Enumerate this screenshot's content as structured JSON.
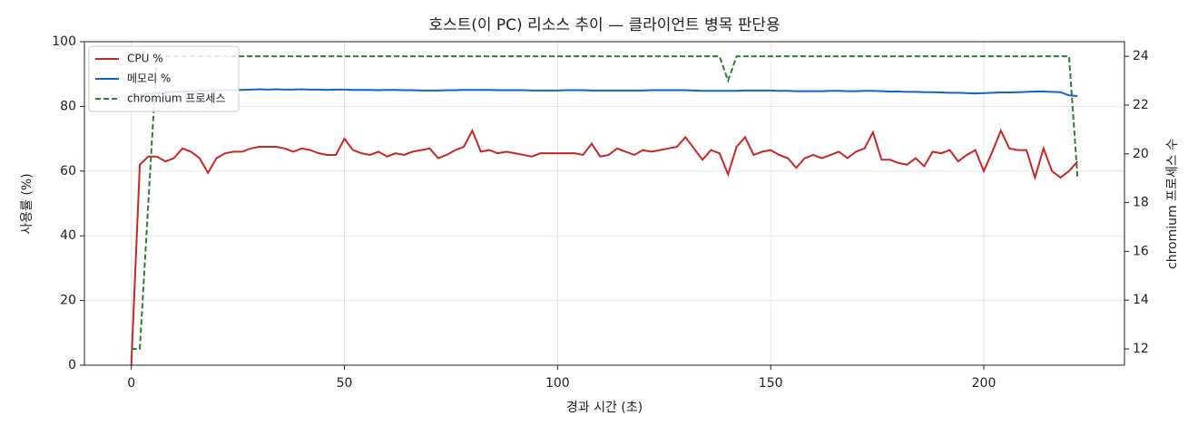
{
  "chart_data": {
    "type": "line",
    "title": "호스트(이 PC) 리소스 추이 — 클라이언트 병목 판단용",
    "x_label": "경과 시간 (초)",
    "y_label": "사용률 (%)",
    "y2_label": "chromium 프로세스 수",
    "x": [
      0,
      2,
      4,
      6,
      8,
      10,
      12,
      14,
      16,
      18,
      20,
      22,
      24,
      26,
      28,
      30,
      32,
      34,
      36,
      38,
      40,
      42,
      44,
      46,
      48,
      50,
      52,
      54,
      56,
      58,
      60,
      62,
      64,
      66,
      68,
      70,
      72,
      74,
      76,
      78,
      80,
      82,
      84,
      86,
      88,
      90,
      92,
      94,
      96,
      98,
      100,
      102,
      104,
      106,
      108,
      110,
      112,
      114,
      116,
      118,
      120,
      122,
      124,
      126,
      128,
      130,
      132,
      134,
      136,
      138,
      140,
      142,
      144,
      146,
      148,
      150,
      152,
      154,
      156,
      158,
      160,
      162,
      164,
      166,
      168,
      170,
      172,
      174,
      176,
      178,
      180,
      182,
      184,
      186,
      188,
      190,
      192,
      194,
      196,
      198,
      200,
      202,
      204,
      206,
      208,
      210,
      212,
      214,
      216,
      218,
      220,
      222
    ],
    "series": [
      {
        "name": "CPU %",
        "color": "#c62828",
        "dash": false,
        "values": [
          0,
          62,
          64.5,
          64.5,
          63,
          64,
          67,
          66,
          64,
          59.5,
          64,
          65.5,
          66,
          66,
          67,
          67.5,
          67.5,
          67.5,
          67,
          66,
          67,
          66.5,
          65.5,
          65,
          65,
          70,
          66.5,
          65.5,
          65,
          66,
          64.5,
          65.5,
          65,
          66,
          66.5,
          67,
          64,
          65,
          66.5,
          67.5,
          72.5,
          66,
          66.5,
          65.5,
          66,
          65.5,
          65,
          64.5,
          65.5,
          65.5,
          65.5,
          65.5,
          65.5,
          65,
          68.5,
          64.5,
          65,
          67,
          66,
          65,
          66.5,
          66,
          66.5,
          67,
          67.5,
          70.5,
          67,
          63.5,
          66.5,
          65.5,
          59,
          67.5,
          70.5,
          65,
          66,
          66.5,
          65,
          64,
          61,
          64,
          65,
          64,
          65,
          66,
          64,
          66,
          67,
          72,
          63.5,
          63.5,
          62.5,
          62,
          64,
          61.5,
          66,
          65.5,
          66.5,
          63,
          65,
          66.5,
          60,
          66,
          72.5,
          67,
          66.5,
          66.5,
          58,
          67,
          60,
          58,
          60,
          63
        ]
      },
      {
        "name": "메모리 %",
        "color": "#1565c0",
        "dash": false,
        "values": [
          83,
          83.5,
          84,
          84,
          84.3,
          84.5,
          84.6,
          84.7,
          84.8,
          84.9,
          85,
          85,
          85,
          85.1,
          85.2,
          85.3,
          85.2,
          85.3,
          85.2,
          85.2,
          85.3,
          85.2,
          85.2,
          85.1,
          85.2,
          85.2,
          85.1,
          85.1,
          85.1,
          85,
          85.1,
          85.1,
          85,
          85,
          84.9,
          84.9,
          84.9,
          85,
          85,
          85.1,
          85.1,
          85.1,
          85.1,
          85,
          85,
          85,
          85,
          84.9,
          84.9,
          84.9,
          84.9,
          85,
          85,
          85,
          84.9,
          84.9,
          84.9,
          84.9,
          84.9,
          84.9,
          84.9,
          85,
          85,
          85,
          85,
          85,
          84.9,
          84.8,
          84.8,
          84.8,
          84.8,
          84.8,
          84.9,
          84.9,
          84.9,
          84.9,
          84.8,
          84.8,
          84.7,
          84.7,
          84.7,
          84.7,
          84.8,
          84.8,
          84.7,
          84.7,
          84.8,
          84.8,
          84.7,
          84.6,
          84.6,
          84.5,
          84.5,
          84.4,
          84.4,
          84.3,
          84.2,
          84.2,
          84.1,
          84,
          84.1,
          84.2,
          84.3,
          84.3,
          84.4,
          84.5,
          84.6,
          84.6,
          84.5,
          84.4,
          83.4,
          83.2
        ]
      },
      {
        "name": "chromium 프로세스",
        "color": "#2e7d32",
        "dash": true,
        "axis": "y2",
        "values": [
          12,
          12,
          18,
          24,
          24,
          24,
          24,
          24,
          24,
          24,
          24,
          24,
          24,
          24,
          24,
          24,
          24,
          24,
          24,
          24,
          24,
          24,
          24,
          24,
          24,
          24,
          24,
          24,
          24,
          24,
          24,
          24,
          24,
          24,
          24,
          24,
          24,
          24,
          24,
          24,
          24,
          24,
          24,
          24,
          24,
          24,
          24,
          24,
          24,
          24,
          24,
          24,
          24,
          24,
          24,
          24,
          24,
          24,
          24,
          24,
          24,
          24,
          24,
          24,
          24,
          24,
          24,
          24,
          24,
          24,
          23,
          24,
          24,
          24,
          24,
          24,
          24,
          24,
          24,
          24,
          24,
          24,
          24,
          24,
          24,
          24,
          24,
          24,
          24,
          24,
          24,
          24,
          24,
          24,
          24,
          24,
          24,
          24,
          24,
          24,
          24,
          24,
          24,
          24,
          24,
          24,
          24,
          24,
          24,
          24,
          24,
          19
        ]
      }
    ],
    "xlim": [
      -11,
      233
    ],
    "ylim": [
      0,
      100
    ],
    "y2lim": [
      11.33,
      24.6
    ],
    "xticks": [
      0,
      50,
      100,
      150,
      200
    ],
    "yticks": [
      0,
      20,
      40,
      60,
      80,
      100
    ],
    "y2ticks": [
      12,
      14,
      16,
      18,
      20,
      22,
      24
    ],
    "grid": true,
    "legend": "upper left"
  }
}
